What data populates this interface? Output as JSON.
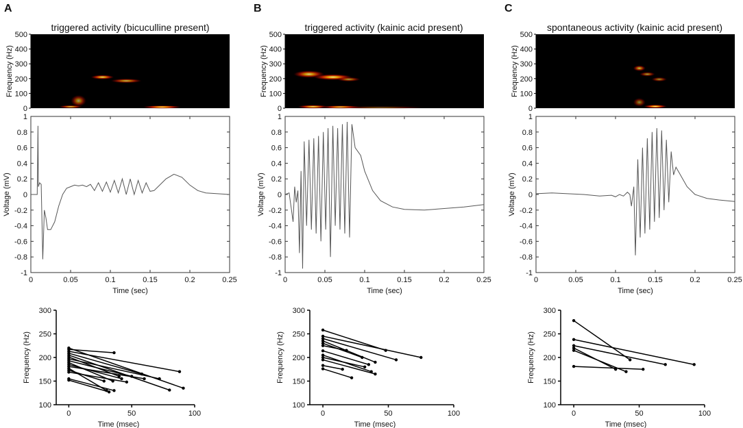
{
  "panels": [
    {
      "letter": "A",
      "title": "triggered activity (bicuculline present)",
      "spectrogram": {
        "ylabel": "Frequency (Hz)",
        "yticks": [
          0,
          100,
          200,
          300,
          400,
          500
        ],
        "blobs": [
          {
            "t": 0.06,
            "f": 50,
            "rt": 0.01,
            "rf": 40,
            "i": 0.6
          },
          {
            "t": 0.09,
            "f": 210,
            "rt": 0.015,
            "rf": 15,
            "i": 0.85
          },
          {
            "t": 0.12,
            "f": 185,
            "rt": 0.02,
            "rf": 15,
            "i": 0.7
          },
          {
            "t": 0.05,
            "f": 10,
            "rt": 0.015,
            "rf": 10,
            "i": 0.8
          },
          {
            "t": 0.165,
            "f": 8,
            "rt": 0.025,
            "rf": 10,
            "i": 1.0
          }
        ]
      },
      "trace": {
        "ylabel": "Voltage (mV)",
        "xlabel": "Time (sec)",
        "xlim": [
          0,
          0.25
        ],
        "ylim": [
          -1,
          1
        ],
        "xticks": [
          "0",
          "0.05",
          "0.1",
          "0.15",
          "0.2",
          "0.25"
        ],
        "yticks": [
          "-1",
          "-0.8",
          "-0.6",
          "-0.4",
          "-0.2",
          "0",
          "0.2",
          "0.4",
          "0.6",
          "0.8",
          "1"
        ],
        "points": [
          [
            0,
            0
          ],
          [
            0.008,
            0
          ],
          [
            0.009,
            0.88
          ],
          [
            0.0095,
            0.1
          ],
          [
            0.011,
            0.15
          ],
          [
            0.013,
            0.13
          ],
          [
            0.015,
            -0.83
          ],
          [
            0.017,
            -0.2
          ],
          [
            0.019,
            -0.3
          ],
          [
            0.021,
            -0.45
          ],
          [
            0.025,
            -0.45
          ],
          [
            0.03,
            -0.35
          ],
          [
            0.035,
            -0.15
          ],
          [
            0.04,
            0.0
          ],
          [
            0.045,
            0.08
          ],
          [
            0.05,
            0.1
          ],
          [
            0.055,
            0.12
          ],
          [
            0.06,
            0.11
          ],
          [
            0.065,
            0.12
          ],
          [
            0.07,
            0.1
          ],
          [
            0.075,
            0.13
          ],
          [
            0.08,
            0.05
          ],
          [
            0.085,
            0.15
          ],
          [
            0.09,
            0.04
          ],
          [
            0.095,
            0.16
          ],
          [
            0.1,
            0.03
          ],
          [
            0.105,
            0.18
          ],
          [
            0.11,
            0.02
          ],
          [
            0.115,
            0.2
          ],
          [
            0.12,
            0.0
          ],
          [
            0.125,
            0.2
          ],
          [
            0.13,
            0.0
          ],
          [
            0.135,
            0.18
          ],
          [
            0.14,
            0.02
          ],
          [
            0.145,
            0.15
          ],
          [
            0.15,
            0.04
          ],
          [
            0.155,
            0.05
          ],
          [
            0.16,
            0.1
          ],
          [
            0.17,
            0.2
          ],
          [
            0.18,
            0.26
          ],
          [
            0.19,
            0.22
          ],
          [
            0.2,
            0.12
          ],
          [
            0.21,
            0.05
          ],
          [
            0.22,
            0.02
          ],
          [
            0.235,
            0.01
          ],
          [
            0.25,
            0.0
          ]
        ]
      },
      "scatter": {
        "ylabel": "Frequency (Hz)",
        "xlabel": "Time (msec)",
        "xlim": [
          -10,
          100
        ],
        "ylim": [
          100,
          300
        ],
        "xticks": [
          "0",
          "50",
          "100"
        ],
        "yticks": [
          "100",
          "150",
          "200",
          "250",
          "300"
        ],
        "segments": [
          [
            0,
            220,
            91,
            135
          ],
          [
            0,
            217,
            36,
            210
          ],
          [
            0,
            213,
            88,
            170
          ],
          [
            0,
            209,
            58,
            165
          ],
          [
            0,
            205,
            80,
            131
          ],
          [
            0,
            201,
            40,
            160
          ],
          [
            0,
            197,
            72,
            155
          ],
          [
            0,
            193,
            50,
            160
          ],
          [
            0,
            189,
            35,
            150
          ],
          [
            0,
            185,
            42,
            155
          ],
          [
            0,
            181,
            60,
            155
          ],
          [
            0,
            177,
            30,
            130
          ],
          [
            0,
            173,
            28,
            150
          ],
          [
            0,
            169,
            46,
            148
          ],
          [
            0,
            155,
            36,
            130
          ],
          [
            0,
            152,
            32,
            127
          ]
        ]
      }
    },
    {
      "letter": "B",
      "title": "triggered activity (kainic acid present)",
      "spectrogram": {
        "ylabel": "Frequency (Hz)",
        "yticks": [
          0,
          100,
          200,
          300,
          400,
          500
        ],
        "blobs": [
          {
            "t": 0.03,
            "f": 230,
            "rt": 0.02,
            "rf": 25,
            "i": 0.8
          },
          {
            "t": 0.06,
            "f": 210,
            "rt": 0.025,
            "rf": 20,
            "i": 0.9
          },
          {
            "t": 0.08,
            "f": 195,
            "rt": 0.015,
            "rf": 15,
            "i": 0.6
          },
          {
            "t": 0.035,
            "f": 10,
            "rt": 0.02,
            "rf": 12,
            "i": 0.9
          },
          {
            "t": 0.07,
            "f": 8,
            "rt": 0.025,
            "rf": 10,
            "i": 0.95
          },
          {
            "t": 0.12,
            "f": 5,
            "rt": 0.06,
            "rf": 8,
            "i": 0.4
          }
        ]
      },
      "trace": {
        "ylabel": "Voltage (mV)",
        "xlabel": "Time (sec)",
        "xlim": [
          0,
          0.25
        ],
        "ylim": [
          -1,
          1
        ],
        "xticks": [
          "0",
          "0.05",
          "0.1",
          "0.15",
          "0.2",
          "0.25"
        ],
        "yticks": [
          "-1",
          "-0.8",
          "-0.6",
          "-0.4",
          "-0.2",
          "0",
          "0.2",
          "0.4",
          "0.6",
          "0.8",
          "1"
        ],
        "points": [
          [
            0,
            0
          ],
          [
            0.005,
            0.02
          ],
          [
            0.008,
            -0.2
          ],
          [
            0.01,
            -0.35
          ],
          [
            0.012,
            0.1
          ],
          [
            0.014,
            -0.1
          ],
          [
            0.016,
            0.05
          ],
          [
            0.018,
            -0.75
          ],
          [
            0.02,
            0.3
          ],
          [
            0.022,
            -0.95
          ],
          [
            0.024,
            0.68
          ],
          [
            0.027,
            -0.4
          ],
          [
            0.03,
            0.7
          ],
          [
            0.033,
            -0.45
          ],
          [
            0.036,
            0.72
          ],
          [
            0.039,
            -0.5
          ],
          [
            0.042,
            0.75
          ],
          [
            0.045,
            -0.6
          ],
          [
            0.048,
            0.8
          ],
          [
            0.051,
            -0.45
          ],
          [
            0.054,
            0.85
          ],
          [
            0.057,
            -0.8
          ],
          [
            0.06,
            0.88
          ],
          [
            0.063,
            -0.4
          ],
          [
            0.066,
            0.85
          ],
          [
            0.069,
            -0.45
          ],
          [
            0.072,
            0.9
          ],
          [
            0.075,
            -0.5
          ],
          [
            0.078,
            0.93
          ],
          [
            0.081,
            -0.55
          ],
          [
            0.084,
            0.9
          ],
          [
            0.088,
            0.6
          ],
          [
            0.095,
            0.5
          ],
          [
            0.1,
            0.3
          ],
          [
            0.11,
            0.05
          ],
          [
            0.12,
            -0.08
          ],
          [
            0.135,
            -0.16
          ],
          [
            0.15,
            -0.19
          ],
          [
            0.175,
            -0.2
          ],
          [
            0.2,
            -0.18
          ],
          [
            0.225,
            -0.16
          ],
          [
            0.25,
            -0.13
          ]
        ]
      },
      "scatter": {
        "ylabel": "Frequency (Hz)",
        "xlabel": "Time (msec)",
        "xlim": [
          -10,
          100
        ],
        "ylim": [
          100,
          300
        ],
        "xticks": [
          "0",
          "50",
          "100"
        ],
        "yticks": [
          "100",
          "150",
          "200",
          "250",
          "300"
        ],
        "segments": [
          [
            0,
            258,
            48,
            215
          ],
          [
            0,
            245,
            75,
            200
          ],
          [
            0,
            240,
            56,
            195
          ],
          [
            0,
            235,
            40,
            190
          ],
          [
            0,
            230,
            30,
            200
          ],
          [
            0,
            225,
            18,
            215
          ],
          [
            0,
            214,
            35,
            185
          ],
          [
            0,
            205,
            37,
            170
          ],
          [
            0,
            200,
            32,
            180
          ],
          [
            0,
            195,
            40,
            165
          ],
          [
            0,
            176,
            22,
            157
          ],
          [
            0,
            183,
            15,
            175
          ]
        ]
      }
    },
    {
      "letter": "C",
      "title": "spontaneous activity (kainic acid present)",
      "spectrogram": {
        "ylabel": "Frequency (Hz)",
        "yticks": [
          0,
          100,
          200,
          300,
          400,
          500
        ],
        "blobs": [
          {
            "t": 0.13,
            "f": 270,
            "rt": 0.008,
            "rf": 20,
            "i": 0.7
          },
          {
            "t": 0.14,
            "f": 230,
            "rt": 0.01,
            "rf": 15,
            "i": 0.6
          },
          {
            "t": 0.155,
            "f": 195,
            "rt": 0.01,
            "rf": 15,
            "i": 0.55
          },
          {
            "t": 0.15,
            "f": 12,
            "rt": 0.015,
            "rf": 12,
            "i": 0.95
          },
          {
            "t": 0.13,
            "f": 40,
            "rt": 0.008,
            "rf": 30,
            "i": 0.5
          }
        ]
      },
      "trace": {
        "ylabel": "Voltage (mV)",
        "xlabel": "Time (sec)",
        "xlim": [
          0,
          0.25
        ],
        "ylim": [
          -1,
          1
        ],
        "xticks": [
          "0",
          "0.05",
          "0.1",
          "0.15",
          "0.2",
          "0.25"
        ],
        "yticks": [
          "-1",
          "-0.8",
          "-0.6",
          "-0.4",
          "-0.2",
          "0",
          "0.2",
          "0.4",
          "0.6",
          "0.8",
          "1"
        ],
        "points": [
          [
            0,
            0.01
          ],
          [
            0.02,
            0.02
          ],
          [
            0.04,
            0.01
          ],
          [
            0.06,
            0.0
          ],
          [
            0.08,
            -0.02
          ],
          [
            0.095,
            -0.01
          ],
          [
            0.1,
            -0.03
          ],
          [
            0.105,
            0.0
          ],
          [
            0.11,
            -0.02
          ],
          [
            0.115,
            0.03
          ],
          [
            0.118,
            0.0
          ],
          [
            0.12,
            -0.15
          ],
          [
            0.123,
            0.1
          ],
          [
            0.125,
            -0.78
          ],
          [
            0.128,
            0.45
          ],
          [
            0.131,
            -0.55
          ],
          [
            0.134,
            0.6
          ],
          [
            0.137,
            -0.5
          ],
          [
            0.14,
            0.72
          ],
          [
            0.143,
            -0.45
          ],
          [
            0.146,
            0.8
          ],
          [
            0.149,
            -0.35
          ],
          [
            0.152,
            0.85
          ],
          [
            0.155,
            -0.3
          ],
          [
            0.158,
            0.82
          ],
          [
            0.161,
            -0.2
          ],
          [
            0.164,
            0.7
          ],
          [
            0.167,
            -0.1
          ],
          [
            0.17,
            0.55
          ],
          [
            0.173,
            0.25
          ],
          [
            0.176,
            0.35
          ],
          [
            0.18,
            0.28
          ],
          [
            0.19,
            0.1
          ],
          [
            0.2,
            0.0
          ],
          [
            0.215,
            -0.05
          ],
          [
            0.23,
            -0.07
          ],
          [
            0.25,
            -0.09
          ]
        ]
      },
      "scatter": {
        "ylabel": "Frequency (Hz)",
        "xlabel": "Time (msec)",
        "xlim": [
          -10,
          100
        ],
        "ylim": [
          100,
          300
        ],
        "xticks": [
          "0",
          "50",
          "100"
        ],
        "yticks": [
          "100",
          "150",
          "200",
          "250",
          "300"
        ],
        "segments": [
          [
            0,
            278,
            43,
            195
          ],
          [
            0,
            238,
            92,
            185
          ],
          [
            0,
            225,
            70,
            185
          ],
          [
            0,
            220,
            32,
            175
          ],
          [
            0,
            215,
            40,
            170
          ],
          [
            0,
            181,
            53,
            175
          ]
        ]
      }
    }
  ],
  "chart_data": [
    {
      "type": "heatmap",
      "title": "triggered activity (bicuculline present)",
      "ylabel": "Frequency (Hz)",
      "ylim": [
        0,
        500
      ]
    },
    {
      "type": "line",
      "title": "",
      "xlabel": "Time (sec)",
      "ylabel": "Voltage (mV)",
      "xlim": [
        0,
        0.25
      ],
      "ylim": [
        -1,
        1
      ]
    },
    {
      "type": "scatter",
      "xlabel": "Time (msec)",
      "ylabel": "Frequency (Hz)",
      "xlim": [
        -10,
        100
      ],
      "ylim": [
        100,
        300
      ]
    }
  ]
}
